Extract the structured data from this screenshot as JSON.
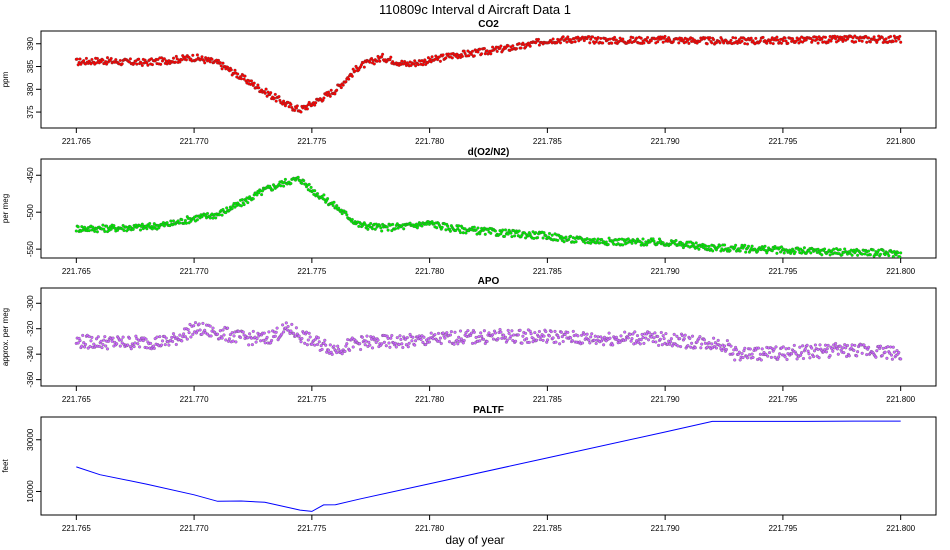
{
  "title": "110809c   Interval d Aircraft Data 1",
  "xlabel": "day of year",
  "x_ticks": [
    "221.765",
    "221.770",
    "221.775",
    "221.780",
    "221.785",
    "221.790",
    "221.795",
    "221.800"
  ],
  "chart_data": [
    {
      "type": "scatter",
      "title": "CO2",
      "ylabel": "ppm",
      "color": "#ff0000",
      "xlim": [
        221.7635,
        221.8015
      ],
      "ylim": [
        371.5,
        392.8
      ],
      "y_ticks": [
        "375",
        "380",
        "385",
        "390"
      ],
      "y_tick_values": [
        375,
        380,
        385,
        390
      ],
      "series": [
        {
          "x": [
            221.765,
            221.766,
            221.767,
            221.768,
            221.769,
            221.77,
            221.771,
            221.772,
            221.773,
            221.774,
            221.7745,
            221.775,
            221.776,
            221.777,
            221.778,
            221.779,
            221.78,
            221.781,
            221.782,
            221.783,
            221.784,
            221.785,
            221.786,
            221.788,
            221.79,
            221.792,
            221.794,
            221.796,
            221.798,
            221.8
          ],
          "y": [
            386.0,
            386.3,
            386.0,
            385.9,
            386.4,
            387.0,
            385.8,
            382.7,
            379.5,
            376.5,
            375.5,
            376.8,
            379.8,
            385.0,
            387.0,
            385.5,
            386.3,
            387.5,
            388.0,
            388.8,
            389.5,
            390.8,
            391.0,
            390.7,
            390.9,
            390.6,
            390.7,
            390.8,
            391.0,
            391.0
          ]
        }
      ]
    },
    {
      "type": "scatter",
      "title": "d(O2/N2)",
      "ylabel": "per meg",
      "color": "#00ee00",
      "xlim": [
        221.7635,
        221.8015
      ],
      "ylim": [
        -562,
        -428
      ],
      "y_ticks": [
        "-450",
        "-500",
        "-550"
      ],
      "y_tick_values": [
        -450,
        -500,
        -550
      ],
      "series": [
        {
          "x": [
            221.765,
            221.766,
            221.767,
            221.768,
            221.769,
            221.77,
            221.771,
            221.772,
            221.773,
            221.774,
            221.7745,
            221.775,
            221.776,
            221.777,
            221.778,
            221.779,
            221.78,
            221.781,
            221.782,
            221.783,
            221.784,
            221.785,
            221.786,
            221.788,
            221.79,
            221.792,
            221.794,
            221.796,
            221.798,
            221.8
          ],
          "y": [
            -522,
            -522,
            -521,
            -520,
            -516,
            -508,
            -503,
            -488,
            -470,
            -458,
            -455,
            -470,
            -492,
            -517,
            -521,
            -519,
            -515,
            -522,
            -525,
            -528,
            -530,
            -532,
            -537,
            -540,
            -541,
            -548,
            -550,
            -553,
            -554,
            -556
          ]
        }
      ]
    },
    {
      "type": "scatter",
      "title": "APO",
      "ylabel": "approx. per meg",
      "color": "#cc66ff",
      "xlim": [
        221.7635,
        221.8015
      ],
      "ylim": [
        -365,
        -288
      ],
      "y_ticks": [
        "-300",
        "-320",
        "-340",
        "-360"
      ],
      "y_tick_values": [
        -300,
        -320,
        -340,
        -360
      ],
      "series": [
        {
          "x": [
            221.765,
            221.767,
            221.769,
            221.77,
            221.771,
            221.772,
            221.773,
            221.774,
            221.775,
            221.776,
            221.777,
            221.779,
            221.781,
            221.783,
            221.785,
            221.787,
            221.789,
            221.791,
            221.7925,
            221.793,
            221.795,
            221.797,
            221.799,
            221.8
          ],
          "y": [
            -330,
            -331,
            -330,
            -320,
            -323,
            -327,
            -328,
            -320,
            -330,
            -336,
            -331,
            -330,
            -327,
            -326,
            -326,
            -328,
            -327,
            -330,
            -332,
            -340,
            -339,
            -337,
            -337,
            -340
          ]
        }
      ]
    },
    {
      "type": "line",
      "title": "PALTF",
      "ylabel": "feet",
      "color": "#0000ff",
      "xlim": [
        221.7635,
        221.8015
      ],
      "ylim": [
        900,
        38800
      ],
      "y_ticks": [
        "10000",
        "30000"
      ],
      "y_tick_values": [
        10000,
        30000
      ],
      "series": [
        {
          "x": [
            221.765,
            221.766,
            221.768,
            221.77,
            221.771,
            221.772,
            221.773,
            221.7745,
            221.775,
            221.7755,
            221.776,
            221.777,
            221.78,
            221.785,
            221.79,
            221.792,
            221.794,
            221.796,
            221.798,
            221.8
          ],
          "y": [
            19500,
            16500,
            12800,
            8700,
            6200,
            6300,
            5800,
            2800,
            2300,
            4800,
            4900,
            7000,
            13000,
            23000,
            33000,
            37100,
            37100,
            37100,
            37200,
            37200
          ]
        }
      ]
    }
  ]
}
